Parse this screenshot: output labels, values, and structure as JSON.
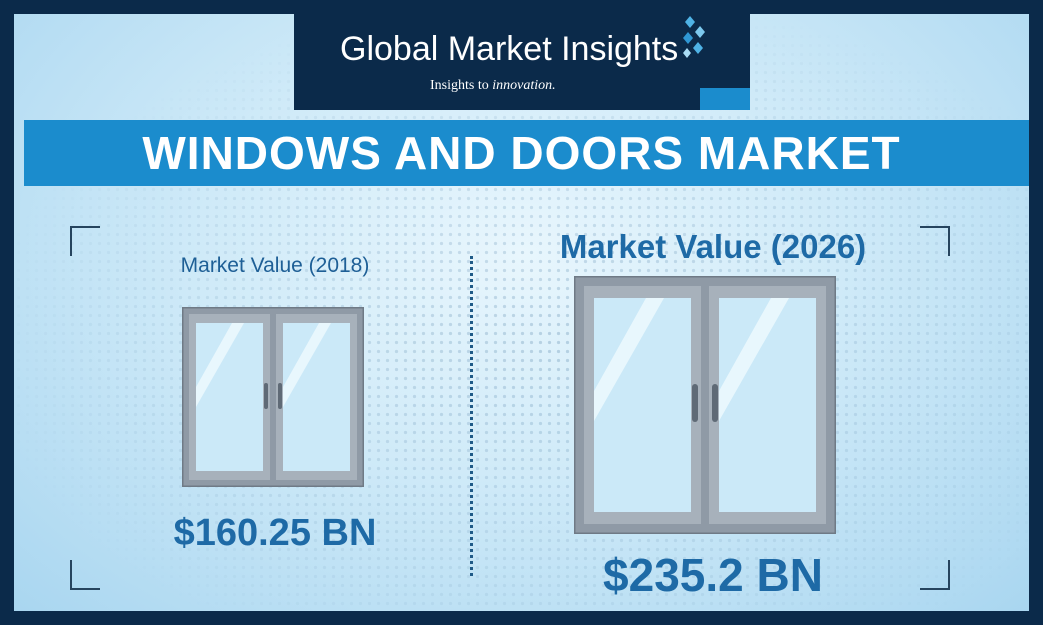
{
  "brand": {
    "name": "Global Market Insights",
    "tagline_prefix": "Insights to",
    "tagline_emphasis": "innovation."
  },
  "title": "WINDOWS AND DOORS MARKET",
  "panels": [
    {
      "label": "Market Value (2018)",
      "value": "$160.25 BN"
    },
    {
      "label": "Market Value (2026)",
      "value": "$235.2 BN"
    }
  ],
  "colors": {
    "navy": "#0b2a4a",
    "accent_blue": "#1b8ccd",
    "text_blue": "#1e6aa6",
    "frame_gray": "#8f9aa6",
    "glass": "#cbe9f8"
  },
  "icons": [
    "brand-diamonds-icon",
    "door-icon"
  ]
}
